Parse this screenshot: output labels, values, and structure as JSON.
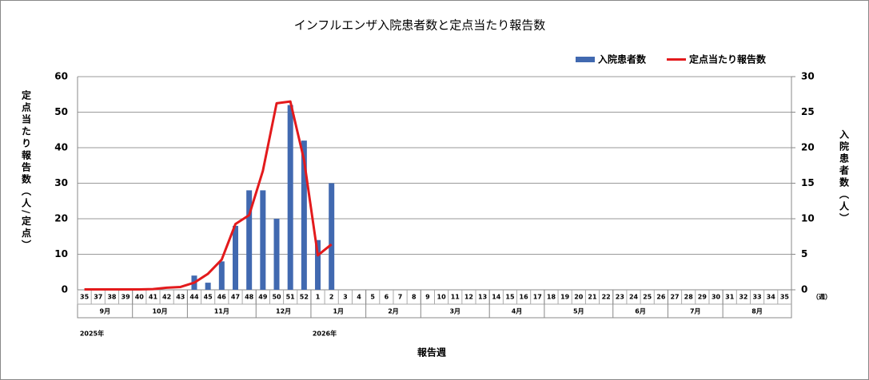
{
  "chart_data": {
    "type": "bar-line",
    "title": "インフルエンザ入院患者数と定点当たり報告数",
    "ylabel": "定点当たり報告数（人/定点）",
    "y2label": "入院患者数（人）",
    "xlabel": "報告週",
    "x_unit": "（週）",
    "categories": [
      "35",
      "37",
      "38",
      "39",
      "40",
      "41",
      "42",
      "43",
      "44",
      "45",
      "46",
      "47",
      "48",
      "49",
      "50",
      "51",
      "52",
      "1",
      "2",
      "3",
      "4",
      "5",
      "6",
      "7",
      "8",
      "9",
      "10",
      "11",
      "12",
      "13",
      "14",
      "15",
      "16",
      "17",
      "18",
      "19",
      "20",
      "21",
      "22",
      "23",
      "24",
      "25",
      "26",
      "27",
      "28",
      "29",
      "30",
      "31",
      "32",
      "33",
      "34",
      "35"
    ],
    "months": [
      "9月",
      "10月",
      "11月",
      "12月",
      "1月",
      "2月",
      "3月",
      "4月",
      "5月",
      "6月",
      "7月",
      "8月"
    ],
    "years": [
      "2025年",
      "2026年"
    ],
    "ylim": [
      0,
      60
    ],
    "yticks": [
      0,
      10,
      20,
      30,
      40,
      50,
      60
    ],
    "y2lim": [
      0,
      30
    ],
    "y2ticks": [
      0,
      5,
      10,
      15,
      20,
      25,
      30
    ],
    "grid": true,
    "legend": "top-right",
    "series": [
      {
        "name": "入院患者数",
        "type": "bar",
        "axis": "y2",
        "color": "#4169b0",
        "values": [
          null,
          null,
          null,
          null,
          null,
          null,
          null,
          null,
          2,
          1,
          4,
          9,
          14,
          14,
          10,
          26,
          21,
          7,
          15,
          null,
          null,
          null,
          null,
          null,
          null,
          null,
          null,
          null,
          null,
          null,
          null,
          null,
          null,
          null,
          null,
          null,
          null,
          null,
          null,
          null,
          null,
          null,
          null,
          null,
          null,
          null,
          null,
          null,
          null,
          null,
          null,
          null
        ]
      },
      {
        "name": "定点当たり報告数",
        "type": "line",
        "color": "#e31a1c",
        "values": [
          0.1,
          0.1,
          0.1,
          0.1,
          0.1,
          0.2,
          0.6,
          0.8,
          2.0,
          4.5,
          8.5,
          18.5,
          21,
          33.5,
          52.5,
          53,
          36.5,
          9.7,
          12.8,
          null,
          null,
          null,
          null,
          null,
          null,
          null,
          null,
          null,
          null,
          null,
          null,
          null,
          null,
          null,
          null,
          null,
          null,
          null,
          null,
          null,
          null,
          null,
          null,
          null,
          null,
          null,
          null,
          null,
          null,
          null,
          null,
          null
        ]
      }
    ]
  }
}
